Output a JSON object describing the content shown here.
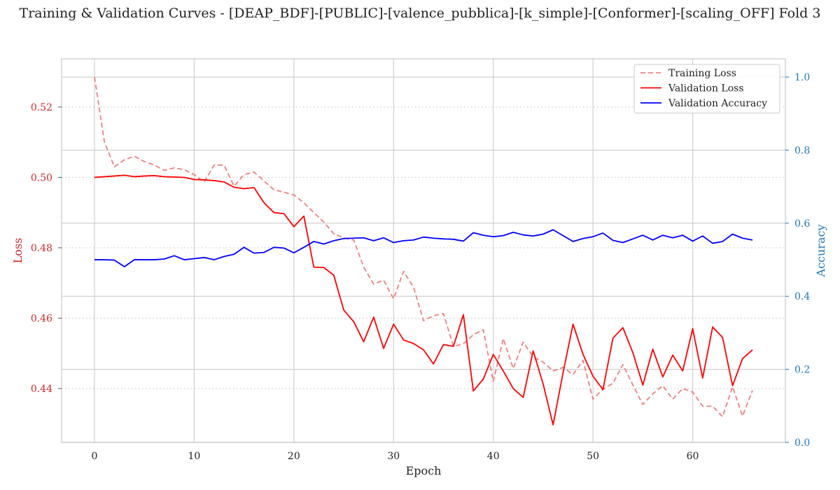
{
  "chart_data": {
    "type": "line",
    "title": "Training & Validation Curves - [DEAP_BDF]-[PUBLIC]-[valence_pubblica]-[k_simple]-[Conformer]-[scaling_OFF] Fold 3",
    "xlabel": "Epoch",
    "ylabel_left": "Loss",
    "ylabel_right": "Accuracy",
    "xlim": [
      -3.3,
      69.3
    ],
    "ylim_left": [
      0.4247,
      0.5337
    ],
    "ylim_right": [
      0.0,
      1.05
    ],
    "x_ticks": [
      0,
      10,
      20,
      30,
      40,
      50,
      60
    ],
    "y_ticks_left": [
      0.44,
      0.46,
      0.48,
      0.5,
      0.52
    ],
    "y_ticks_right": [
      0.0,
      0.2,
      0.4,
      0.6,
      0.8,
      1.0
    ],
    "legend_position": "top-right",
    "grid": true,
    "series": [
      {
        "name": "Training Loss",
        "axis": "left",
        "color": "#f08080",
        "style": "dashed",
        "values": [
          0.5285,
          0.51,
          0.503,
          0.505,
          0.506,
          0.5045,
          0.5035,
          0.502,
          0.5027,
          0.5022,
          0.5008,
          0.4987,
          0.5035,
          0.5035,
          0.4975,
          0.5008,
          0.5015,
          0.499,
          0.4965,
          0.4958,
          0.495,
          0.4928,
          0.49,
          0.4873,
          0.484,
          0.4828,
          0.4822,
          0.4745,
          0.4697,
          0.4708,
          0.4655,
          0.4733,
          0.4688,
          0.4593,
          0.4607,
          0.4613,
          0.452,
          0.4527,
          0.4553,
          0.4567,
          0.442,
          0.4542,
          0.4457,
          0.4532,
          0.449,
          0.4475,
          0.445,
          0.446,
          0.444,
          0.448,
          0.437,
          0.4398,
          0.4415,
          0.4468,
          0.441,
          0.4355,
          0.4385,
          0.4408,
          0.437,
          0.44,
          0.439,
          0.435,
          0.435,
          0.432,
          0.4405,
          0.4322,
          0.4395
        ]
      },
      {
        "name": "Validation Loss",
        "axis": "left",
        "color": "#ff0000",
        "style": "solid",
        "values": [
          0.5,
          0.5002,
          0.5004,
          0.5006,
          0.5002,
          0.5004,
          0.5005,
          0.5002,
          0.5001,
          0.5,
          0.4994,
          0.4993,
          0.4991,
          0.4987,
          0.4972,
          0.4968,
          0.4971,
          0.4928,
          0.49,
          0.4897,
          0.486,
          0.489,
          0.4745,
          0.4744,
          0.4722,
          0.4623,
          0.459,
          0.4533,
          0.4603,
          0.4514,
          0.4583,
          0.4538,
          0.4528,
          0.451,
          0.447,
          0.4525,
          0.452,
          0.461,
          0.4393,
          0.4427,
          0.4497,
          0.445,
          0.44,
          0.4375,
          0.4507,
          0.4413,
          0.4297,
          0.4445,
          0.4583,
          0.4497,
          0.4435,
          0.4397,
          0.4543,
          0.4573,
          0.4502,
          0.441,
          0.4512,
          0.4433,
          0.4495,
          0.445,
          0.457,
          0.443,
          0.4575,
          0.4545,
          0.4408,
          0.4485,
          0.451
        ]
      },
      {
        "name": "Validation Accuracy",
        "axis": "right",
        "color": "#0000ff",
        "style": "solid",
        "values": [
          0.5,
          0.5,
          0.499,
          0.481,
          0.5,
          0.5,
          0.5,
          0.502,
          0.511,
          0.5,
          0.503,
          0.506,
          0.5,
          0.509,
          0.515,
          0.534,
          0.518,
          0.52,
          0.534,
          0.532,
          0.519,
          0.534,
          0.55,
          0.543,
          0.552,
          0.558,
          0.559,
          0.56,
          0.552,
          0.56,
          0.547,
          0.552,
          0.554,
          0.562,
          0.559,
          0.557,
          0.556,
          0.551,
          0.574,
          0.567,
          0.563,
          0.566,
          0.575,
          0.568,
          0.565,
          0.57,
          0.582,
          0.566,
          0.55,
          0.558,
          0.563,
          0.573,
          0.553,
          0.547,
          0.557,
          0.567,
          0.554,
          0.567,
          0.56,
          0.567,
          0.551,
          0.565,
          0.545,
          0.55,
          0.57,
          0.559,
          0.554
        ]
      }
    ]
  }
}
